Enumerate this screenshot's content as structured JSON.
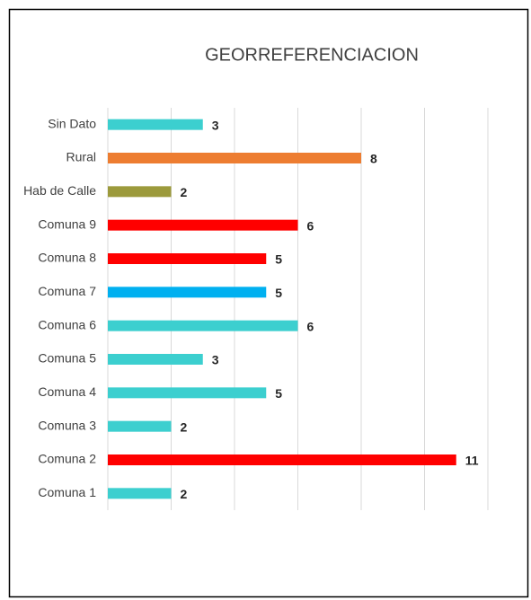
{
  "chart_data": {
    "type": "bar",
    "orientation": "horizontal",
    "title": "GEORREFERENCIACION",
    "categories": [
      "Sin Dato",
      "Rural",
      "Hab de Calle",
      "Comuna 9",
      "Comuna 8",
      "Comuna 7",
      "Comuna 6",
      "Comuna 5",
      "Comuna 4",
      "Comuna 3",
      "Comuna 2",
      "Comuna 1"
    ],
    "values": [
      3,
      8,
      2,
      6,
      5,
      5,
      6,
      3,
      5,
      2,
      11,
      2
    ],
    "colors": [
      "#3ccfcf",
      "#ed7d31",
      "#9c9a3c",
      "#ff0000",
      "#ff0000",
      "#00b0f0",
      "#3ccfcf",
      "#3ccfcf",
      "#3ccfcf",
      "#3ccfcf",
      "#ff0000",
      "#3ccfcf"
    ],
    "xlim": [
      0,
      12
    ],
    "xticks": [
      0,
      2,
      4,
      6,
      8,
      10,
      12
    ],
    "grid": true
  }
}
